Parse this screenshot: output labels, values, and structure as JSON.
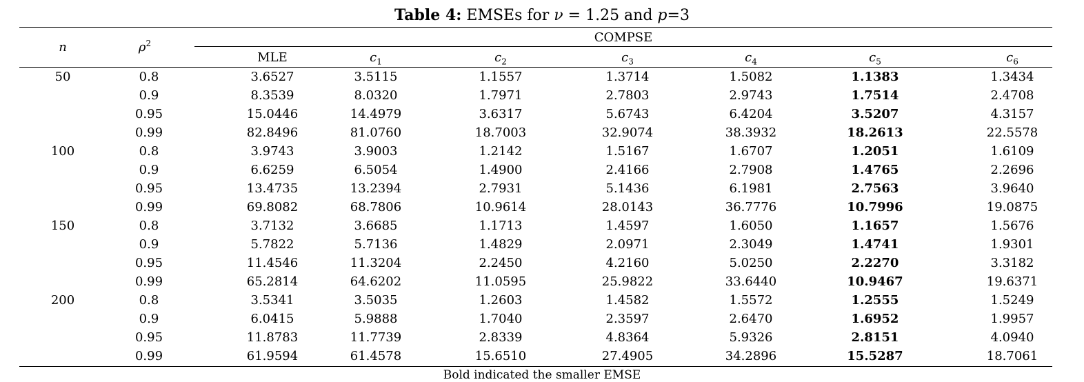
{
  "caption": {
    "label": "Table 4:",
    "text_a": " EMSEs for ",
    "nu_symbol": "ν",
    "text_b": " = 1.25 and ",
    "p_symbol": "p",
    "text_c": "=3"
  },
  "headers": {
    "n": "n",
    "rho": "ρ",
    "rho_sup": "2",
    "group": "COMPSE",
    "mle": "MLE",
    "c_symbol": "c",
    "c_subs": [
      "1",
      "2",
      "3",
      "4",
      "5",
      "6"
    ]
  },
  "rows": [
    {
      "n": "50",
      "rho2": "0.8",
      "vals": [
        "3.6527",
        "3.5115",
        "1.1557",
        "1.3714",
        "1.5082",
        "1.1383",
        "1.3434"
      ]
    },
    {
      "n": "",
      "rho2": "0.9",
      "vals": [
        "8.3539",
        "8.0320",
        "1.7971",
        "2.7803",
        "2.9743",
        "1.7514",
        "2.4708"
      ]
    },
    {
      "n": "",
      "rho2": "0.95",
      "vals": [
        "15.0446",
        "14.4979",
        "3.6317",
        "5.6743",
        "6.4204",
        "3.5207",
        "4.3157"
      ]
    },
    {
      "n": "",
      "rho2": "0.99",
      "vals": [
        "82.8496",
        "81.0760",
        "18.7003",
        "32.9074",
        "38.3932",
        "18.2613",
        "22.5578"
      ]
    },
    {
      "n": "100",
      "rho2": "0.8",
      "vals": [
        "3.9743",
        "3.9003",
        "1.2142",
        "1.5167",
        "1.6707",
        "1.2051",
        "1.6109"
      ]
    },
    {
      "n": "",
      "rho2": "0.9",
      "vals": [
        "6.6259",
        "6.5054",
        "1.4900",
        "2.4166",
        "2.7908",
        "1.4765",
        "2.2696"
      ]
    },
    {
      "n": "",
      "rho2": "0.95",
      "vals": [
        "13.4735",
        "13.2394",
        "2.7931",
        "5.1436",
        "6.1981",
        "2.7563",
        "3.9640"
      ]
    },
    {
      "n": "",
      "rho2": "0.99",
      "vals": [
        "69.8082",
        "68.7806",
        "10.9614",
        "28.0143",
        "36.7776",
        "10.7996",
        "19.0875"
      ]
    },
    {
      "n": "150",
      "rho2": "0.8",
      "vals": [
        "3.7132",
        "3.6685",
        "1.1713",
        "1.4597",
        "1.6050",
        "1.1657",
        "1.5676"
      ]
    },
    {
      "n": "",
      "rho2": "0.9",
      "vals": [
        "5.7822",
        "5.7136",
        "1.4829",
        "2.0971",
        "2.3049",
        "1.4741",
        "1.9301"
      ]
    },
    {
      "n": "",
      "rho2": "0.95",
      "vals": [
        "11.4546",
        "11.3204",
        "2.2450",
        "4.2160",
        "5.0250",
        "2.2270",
        "3.3182"
      ]
    },
    {
      "n": "",
      "rho2": "0.99",
      "vals": [
        "65.2814",
        "64.6202",
        "11.0595",
        "25.9822",
        "33.6440",
        "10.9467",
        "19.6371"
      ]
    },
    {
      "n": "200",
      "rho2": "0.8",
      "vals": [
        "3.5341",
        "3.5035",
        "1.2603",
        "1.4582",
        "1.5572",
        "1.2555",
        "1.5249"
      ]
    },
    {
      "n": "",
      "rho2": "0.9",
      "vals": [
        "6.0415",
        "5.9888",
        "1.7040",
        "2.3597",
        "2.6470",
        "1.6952",
        "1.9957"
      ]
    },
    {
      "n": "",
      "rho2": "0.95",
      "vals": [
        "11.8783",
        "11.7739",
        "2.8339",
        "4.8364",
        "5.9326",
        "2.8151",
        "4.0940"
      ]
    },
    {
      "n": "",
      "rho2": "0.99",
      "vals": [
        "61.9594",
        "61.4578",
        "15.6510",
        "27.4905",
        "34.2896",
        "15.5287",
        "18.7061"
      ]
    }
  ],
  "bold_column_index": 5,
  "footnote": "Bold indicated the smaller EMSE"
}
